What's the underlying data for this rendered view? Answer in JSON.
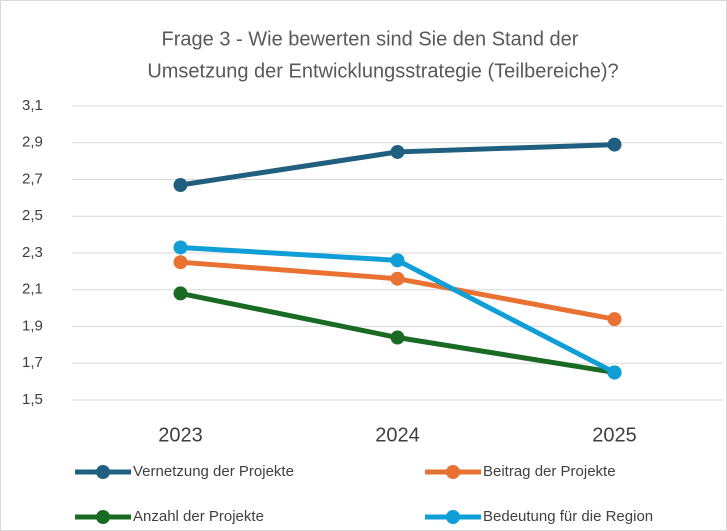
{
  "chart_data": {
    "type": "line",
    "title": [
      "Frage 3 - Wie bewerten sind Sie den Stand der",
      "Umsetzung der Entwicklungsstrategie (Teilbereiche)?"
    ],
    "categories": [
      "2023",
      "2024",
      "2025"
    ],
    "series": [
      {
        "name": "Vernetzung der Projekte",
        "color": "#215f80",
        "values": [
          2.67,
          2.85,
          2.89
        ]
      },
      {
        "name": "Beitrag der Projekte",
        "color": "#e97132",
        "values": [
          2.25,
          2.16,
          1.94
        ]
      },
      {
        "name": "Anzahl der Projekte",
        "color": "#196b24",
        "values": [
          2.08,
          1.84,
          1.65
        ]
      },
      {
        "name": "Bedeutung für die Region",
        "color": "#0f9ed5",
        "values": [
          2.33,
          2.26,
          1.65
        ]
      }
    ],
    "ylim": [
      1.5,
      3.1
    ],
    "yticks": [
      {
        "value": 1.5,
        "label": "1,5"
      },
      {
        "value": 1.7,
        "label": "1,7"
      },
      {
        "value": 1.9,
        "label": "1,9"
      },
      {
        "value": 2.1,
        "label": "2,1"
      },
      {
        "value": 2.3,
        "label": "2,3"
      },
      {
        "value": 2.5,
        "label": "2,5"
      },
      {
        "value": 2.7,
        "label": "2,7"
      },
      {
        "value": 2.9,
        "label": "2,9"
      },
      {
        "value": 3.1,
        "label": "3,1"
      }
    ],
    "grid": true,
    "legend": "bottom"
  }
}
